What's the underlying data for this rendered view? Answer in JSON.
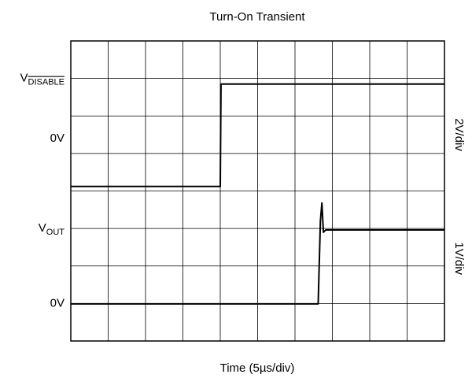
{
  "chart_data": {
    "type": "line",
    "title": "Turn-On Transient",
    "xlabel": "Time (5µs/div)",
    "xlim": [
      0,
      10
    ],
    "ylim": [
      0,
      8
    ],
    "xticks": [
      0,
      1,
      2,
      3,
      4,
      5,
      6,
      7,
      8,
      9,
      10
    ],
    "yticks": [
      0,
      1,
      2,
      3,
      4,
      5,
      6,
      7,
      8
    ],
    "grid": true,
    "y_labels": [
      {
        "value": 7,
        "label": "V",
        "sub": "DISABLE"
      },
      {
        "value": 5.4,
        "label": "0V"
      },
      {
        "value": 3,
        "label": "V",
        "sub": "OUT"
      },
      {
        "value": 1,
        "label": "0V"
      }
    ],
    "scale_labels": [
      {
        "value": 5.5,
        "label": "2V/div"
      },
      {
        "value": 2.2,
        "label": "1V/div"
      }
    ],
    "series": [
      {
        "color": "#000000",
        "x": [
          0,
          4.0,
          4.02,
          10
        ],
        "y": [
          4.12,
          4.12,
          6.85,
          6.85
        ]
      },
      {
        "color": "#000000",
        "x": [
          0,
          6.62,
          6.68,
          6.72,
          6.76,
          6.82,
          10
        ],
        "y": [
          0.99,
          0.99,
          3.2,
          3.68,
          2.9,
          2.96,
          2.96
        ]
      }
    ]
  }
}
